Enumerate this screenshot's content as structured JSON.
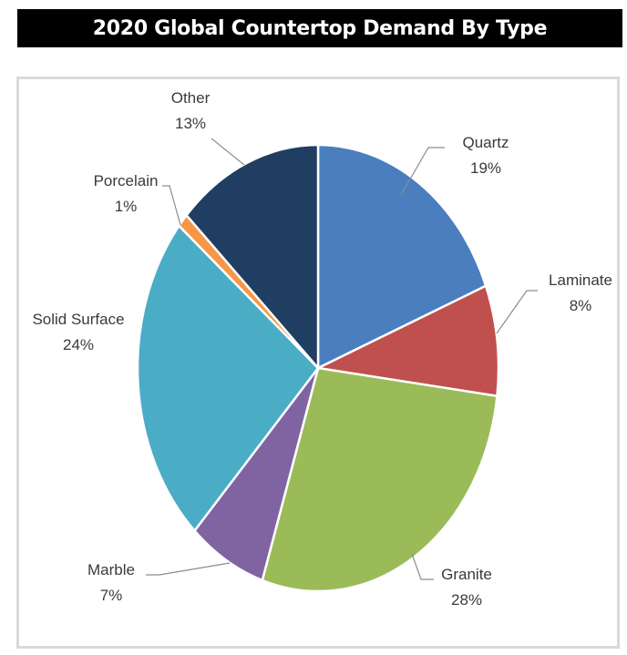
{
  "chart_data": {
    "type": "pie",
    "title": "2020 Global Countertop Demand By Type",
    "slices": [
      {
        "label": "Quartz",
        "value": 19,
        "value_label": "19%",
        "color": "#4a7ebf"
      },
      {
        "label": "Laminate",
        "value": 8,
        "value_label": "8%",
        "color": "#c0504d"
      },
      {
        "label": "Granite",
        "value": 28,
        "value_label": "28%",
        "color": "#9bbb59"
      },
      {
        "label": "Marble",
        "value": 7,
        "value_label": "7%",
        "color": "#8064a2"
      },
      {
        "label": "Solid Surface",
        "value": 24,
        "value_label": "24%",
        "color": "#4bacc6"
      },
      {
        "label": "Porcelain",
        "value": 1,
        "value_label": "1%",
        "color": "#f79646"
      },
      {
        "label": "Other",
        "value": 13,
        "value_label": "13%",
        "color": "#1f3e62"
      }
    ],
    "legend": "none",
    "label_placement": "outside-with-leader-lines"
  }
}
